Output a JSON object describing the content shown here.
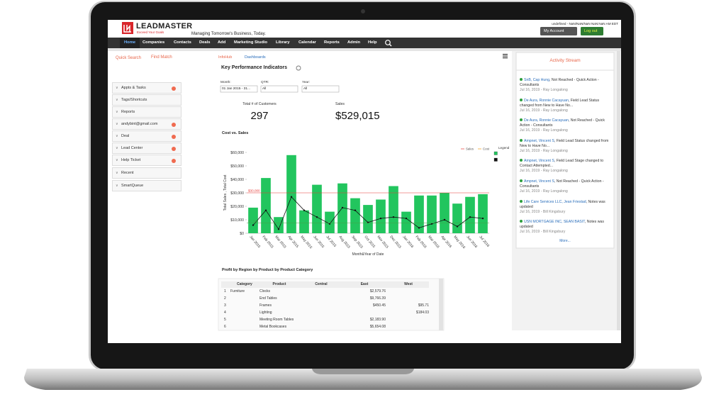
{
  "header": {
    "logo": "LEADMASTER",
    "slogan": "Exceed Your Goals",
    "tagline": "Managing Tomorrow's Business, Today.",
    "datetime": "undefined - NaN/NaN/NaN NaN:NaN AM EDT",
    "account": "My Account",
    "logout": "Log out"
  },
  "nav": [
    "Home",
    "Companies",
    "Contacts",
    "Deals",
    "Add",
    "Marketing Studio",
    "Library",
    "Calendar",
    "Reports",
    "Admin",
    "Help"
  ],
  "sidebar": {
    "quick_search": "Quick Search",
    "find_match": "Find Match",
    "items": [
      {
        "label": "Appts & Tasks",
        "badge": true
      },
      {
        "label": "Tags/Shortcuts",
        "badge": false
      },
      {
        "label": "Reports",
        "badge": false
      },
      {
        "label": "andybint@gmail.com",
        "badge": true
      },
      {
        "label": "Deal",
        "badge": true
      },
      {
        "label": "Lead Center",
        "badge": true
      },
      {
        "label": "Help Ticket",
        "badge": true
      },
      {
        "label": "Recent",
        "badge": false
      },
      {
        "label": "SmartQueue",
        "badge": false
      }
    ]
  },
  "tabs": [
    "InfoHub",
    "Dashboards"
  ],
  "kpi": {
    "title": "Key Performance Indicators",
    "filters": [
      {
        "label": "Month:",
        "value": "01 Jan 2015 - 31..."
      },
      {
        "label": "QTR:",
        "value": "All"
      },
      {
        "label": "Year:",
        "value": "All"
      }
    ],
    "metrics": [
      {
        "label": "Total # of Customers",
        "value": 297
      },
      {
        "label": "Sales",
        "value": 529015,
        "value_label": "$529,015"
      }
    ]
  },
  "chart_data": {
    "type": "bar",
    "title": "Cost vs. Sales",
    "x_label": "Month&Year of Date",
    "y_label": "Total Sales , Total Cost",
    "legend_title": "Legend",
    "categories": [
      "Jan 2015",
      "Feb 2015",
      "Mar 2015",
      "Apr 2015",
      "May 2015",
      "Jun 2015",
      "Jul 2015",
      "Aug 2015",
      "Sep 2015",
      "Oct 2015",
      "Nov 2015",
      "Dec 2015",
      "Jan 2016",
      "Feb 2016",
      "Mar 2016",
      "Apr 2016",
      "May 2016",
      "Jun 2016",
      "Jul 2016"
    ],
    "series": [
      {
        "name": "Sales",
        "color": "#22c55e",
        "values": [
          19000,
          41000,
          12000,
          58000,
          17000,
          36000,
          16000,
          37000,
          26000,
          21000,
          25000,
          35000,
          16000,
          28000,
          28000,
          30000,
          22000,
          27000,
          29000
        ]
      },
      {
        "name": "Cost",
        "type": "line",
        "color": "#111111",
        "values": [
          6000,
          17000,
          3000,
          27000,
          17000,
          12000,
          7000,
          19000,
          17000,
          8000,
          11000,
          12000,
          11000,
          4000,
          7000,
          10000,
          5000,
          12000,
          11000
        ]
      }
    ],
    "ylim": [
      0,
      60000
    ],
    "yticks": [
      {
        "value": 0,
        "label": "$0"
      },
      {
        "value": 10000,
        "label": "$10,000"
      },
      {
        "value": 20000,
        "label": "$20,000"
      },
      {
        "value": 30000,
        "label": "$30,000"
      },
      {
        "value": 40000,
        "label": "$40,000"
      },
      {
        "value": 50000,
        "label": "$50,000"
      },
      {
        "value": 60000,
        "label": "$60,000"
      }
    ],
    "reference_lines": [
      {
        "value": 30000,
        "label": "$30,000",
        "color": "#e53935"
      },
      {
        "value": 7500,
        "label": "$7,500",
        "color": "#43a047"
      }
    ]
  },
  "table": {
    "title": "Profit by Region by Product by Product Category",
    "columns": [
      "Category",
      "Product",
      "Central",
      "East",
      "West"
    ],
    "rows": [
      [
        "1",
        "Furniture",
        "Clocks",
        null,
        "$2,579.76",
        null
      ],
      [
        "2",
        null,
        "End Tables",
        null,
        "$9,766.39",
        null
      ],
      [
        "3",
        null,
        "Frames",
        null,
        "$450.45",
        "$95.71"
      ],
      [
        "4",
        null,
        "Lighting",
        null,
        null,
        "$184.03"
      ],
      [
        "5",
        null,
        "Meeting Room Tables",
        null,
        "$2,183.90",
        null
      ],
      [
        "6",
        null,
        "Metal Bookcases",
        null,
        "$5,654.08",
        null
      ]
    ]
  },
  "activity": {
    "title": "Activity Stream",
    "more": "More...",
    "items": [
      {
        "name": "SnB, Cap Hung",
        "text": ", Not Reached - Quick Action - Consultants",
        "date": "Jul 16, 2019 - Ray Longalong"
      },
      {
        "name": "De Aura, Ronnie Cacayuan",
        "text": ", Field Lead Status changed from New to Have No...",
        "date": "Jul 16, 2019 - Ray Longalong"
      },
      {
        "name": "De Aura, Ronnie Cacayuan",
        "text": ", Not Reached - Quick Action - Consultants",
        "date": "Jul 16, 2019 - Ray Longalong"
      },
      {
        "name": "Ampnet, Vincent S",
        "text": ", Field Lead Status changed from New to Have No...",
        "date": "Jul 16, 2019 - Ray Longalong"
      },
      {
        "name": "Ampnet, Vincent S",
        "text": ", Field Lead Stage changed to Contact Attempted...",
        "date": "Jul 16, 2019 - Ray Longalong"
      },
      {
        "name": "Ampnet, Vincent S",
        "text": ", Not Reached - Quick Action - Consultants",
        "date": "Jul 16, 2019 - Ray Longalong"
      },
      {
        "name": "Life Care Services LLC, Jean Friestad",
        "text": ", Notes was updated",
        "date": "Jul 16, 2019 - Bill Kingsbury"
      },
      {
        "name": "USN MORTGAGE INC, SEAN BASIT",
        "text": ", Notes was updated",
        "date": "Jul 16, 2019 - Bill Kingsbury"
      }
    ]
  }
}
